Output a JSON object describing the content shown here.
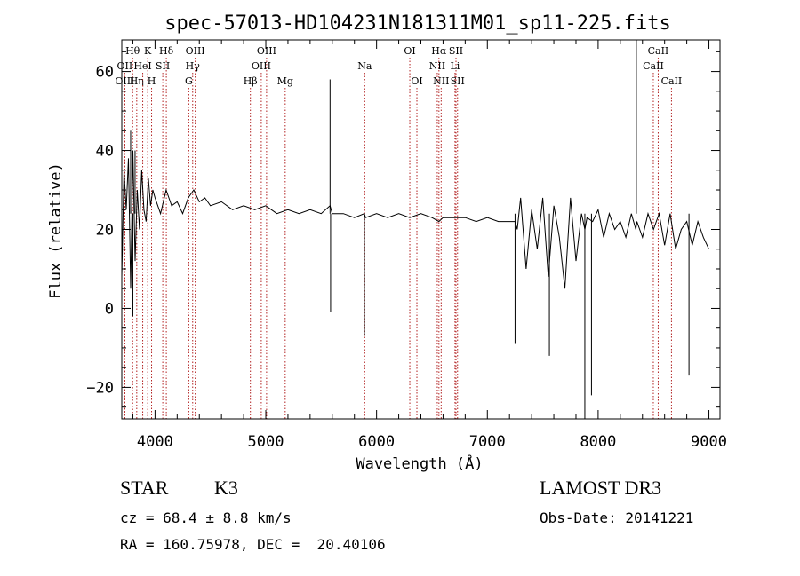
{
  "chart_data": {
    "type": "line",
    "title": "spec-57013-HD104231N181311M01_sp11-225.fits",
    "xlabel": "Wavelength (Å)",
    "ylabel": "Flux (relative)",
    "xlim": [
      3700,
      9100
    ],
    "ylim": [
      -28,
      68
    ],
    "xticks": [
      4000,
      5000,
      6000,
      7000,
      8000,
      9000
    ],
    "xtick_labels": [
      "4000",
      "5000",
      "6000",
      "7000",
      "8000",
      "9000"
    ],
    "yticks": [
      -20,
      0,
      20,
      40,
      60
    ],
    "ytick_labels": [
      "−20",
      "0",
      "20",
      "40",
      "60"
    ],
    "line_color": "#000000",
    "marker_color": "#b22222",
    "spectrum": {
      "name": "flux",
      "x": [
        3700,
        3720,
        3740,
        3760,
        3780,
        3800,
        3820,
        3840,
        3860,
        3880,
        3900,
        3920,
        3940,
        3960,
        3980,
        4000,
        4050,
        4100,
        4150,
        4200,
        4250,
        4300,
        4350,
        4400,
        4450,
        4500,
        4600,
        4700,
        4800,
        4900,
        5000,
        5100,
        5200,
        5300,
        5400,
        5500,
        5580,
        5600,
        5700,
        5800,
        5890,
        5900,
        6000,
        6100,
        6200,
        6300,
        6400,
        6500,
        6563,
        6600,
        6700,
        6800,
        6900,
        7000,
        7100,
        7200,
        7250,
        7270,
        7300,
        7350,
        7400,
        7450,
        7500,
        7550,
        7600,
        7650,
        7700,
        7750,
        7800,
        7850,
        7880,
        7900,
        7950,
        8000,
        8050,
        8100,
        8150,
        8200,
        8250,
        8300,
        8340,
        8350,
        8400,
        8450,
        8500,
        8550,
        8600,
        8650,
        8700,
        8750,
        8800,
        8850,
        8900,
        8950,
        9000
      ],
      "y": [
        8,
        35,
        25,
        38,
        5,
        40,
        12,
        30,
        20,
        35,
        25,
        22,
        33,
        26,
        30,
        28,
        24,
        30,
        26,
        27,
        24,
        28,
        30,
        27,
        28,
        26,
        27,
        25,
        26,
        25,
        26,
        24,
        25,
        24,
        25,
        24,
        26,
        24,
        24,
        23,
        24,
        23,
        24,
        23,
        24,
        23,
        24,
        23,
        22,
        23,
        23,
        23,
        22,
        23,
        22,
        22,
        22,
        20,
        28,
        10,
        25,
        15,
        28,
        8,
        26,
        18,
        5,
        28,
        12,
        24,
        20,
        23,
        22,
        25,
        18,
        24,
        20,
        22,
        18,
        24,
        20,
        22,
        18,
        24,
        20,
        24,
        16,
        24,
        15,
        20,
        22,
        16,
        22,
        18,
        15
      ]
    },
    "spikes": [
      {
        "x": 3780,
        "y": 45
      },
      {
        "x": 3800,
        "y": -2
      },
      {
        "x": 3820,
        "y": 40
      },
      {
        "x": 5580,
        "y": 58
      },
      {
        "x": 5585,
        "y": -1
      },
      {
        "x": 5890,
        "y": -7
      },
      {
        "x": 7250,
        "y": -9
      },
      {
        "x": 7560,
        "y": -12
      },
      {
        "x": 7880,
        "y": -28
      },
      {
        "x": 7940,
        "y": -22
      },
      {
        "x": 8345,
        "y": 68
      },
      {
        "x": 8820,
        "y": -17
      }
    ],
    "line_markers": [
      {
        "label": "Hθ",
        "x": 3798,
        "row": 1
      },
      {
        "label": "OII",
        "x": 3727,
        "row": 2
      },
      {
        "label": "OIII",
        "x": 3727,
        "row": 3
      },
      {
        "label": "Hη",
        "x": 3835,
        "row": 3
      },
      {
        "label": "K",
        "x": 3934,
        "row": 1
      },
      {
        "label": "HeI",
        "x": 3889,
        "row": 2
      },
      {
        "label": "H",
        "x": 3969,
        "row": 3
      },
      {
        "label": "SII",
        "x": 4070,
        "row": 2
      },
      {
        "label": "Hδ",
        "x": 4102,
        "row": 1
      },
      {
        "label": "OIII",
        "x": 4363,
        "row": 1
      },
      {
        "label": "Hγ",
        "x": 4340,
        "row": 2
      },
      {
        "label": "G",
        "x": 4305,
        "row": 3
      },
      {
        "label": "Hβ",
        "x": 4861,
        "row": 3
      },
      {
        "label": "OIII",
        "x": 5007,
        "row": 1
      },
      {
        "label": "OIII",
        "x": 4959,
        "row": 2
      },
      {
        "label": "Mg",
        "x": 5175,
        "row": 3
      },
      {
        "label": "Na",
        "x": 5893,
        "row": 2
      },
      {
        "label": "OI",
        "x": 6300,
        "row": 1
      },
      {
        "label": "OI",
        "x": 6364,
        "row": 3
      },
      {
        "label": "Hα",
        "x": 6563,
        "row": 1
      },
      {
        "label": "NII",
        "x": 6548,
        "row": 2
      },
      {
        "label": "NII",
        "x": 6583,
        "row": 3
      },
      {
        "label": "SII",
        "x": 6717,
        "row": 1
      },
      {
        "label": "Li",
        "x": 6708,
        "row": 2
      },
      {
        "label": "SII",
        "x": 6731,
        "row": 3
      },
      {
        "label": "CaII",
        "x": 8542,
        "row": 1
      },
      {
        "label": "CaII",
        "x": 8498,
        "row": 2
      },
      {
        "label": "CaII",
        "x": 8662,
        "row": 3
      }
    ]
  },
  "info": {
    "class_label": "STAR",
    "subclass": "K3",
    "survey": "LAMOST DR3",
    "cz": "cz = 68.4 ± 8.8 km/s",
    "obs_date": "Obs-Date: 20141221",
    "coords": "RA = 160.75978, DEC =  20.40106"
  }
}
